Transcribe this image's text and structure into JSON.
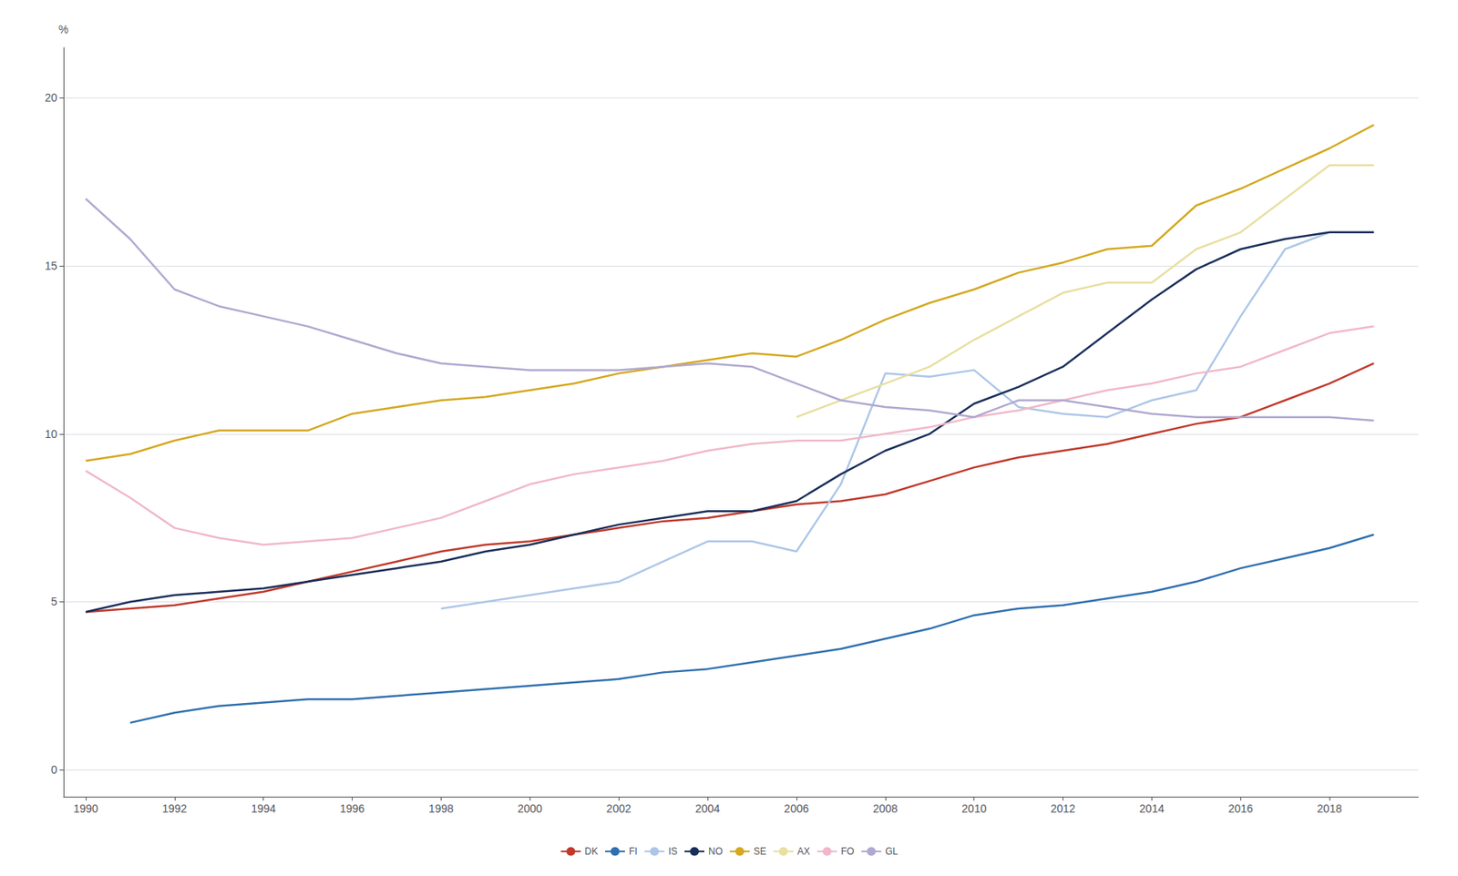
{
  "chart_data": {
    "type": "line",
    "ylabel": "%",
    "x": [
      1990,
      1991,
      1992,
      1993,
      1994,
      1995,
      1996,
      1997,
      1998,
      1999,
      2000,
      2001,
      2002,
      2003,
      2004,
      2005,
      2006,
      2007,
      2008,
      2009,
      2010,
      2011,
      2012,
      2013,
      2014,
      2015,
      2016,
      2017,
      2018,
      2019
    ],
    "series": [
      {
        "name": "DK",
        "color": "#c0392b",
        "values": [
          4.7,
          4.8,
          4.9,
          5.1,
          5.3,
          5.6,
          5.9,
          6.2,
          6.5,
          6.7,
          6.8,
          7.0,
          7.2,
          7.4,
          7.5,
          7.7,
          7.9,
          8.0,
          8.2,
          8.6,
          9.0,
          9.3,
          9.5,
          9.7,
          10.0,
          10.3,
          10.5,
          11.0,
          11.5,
          12.1
        ]
      },
      {
        "name": "FI",
        "color": "#3070b0",
        "values": [
          null,
          1.4,
          1.7,
          1.9,
          2.0,
          2.1,
          2.1,
          2.2,
          2.3,
          2.4,
          2.5,
          2.6,
          2.7,
          2.9,
          3.0,
          3.2,
          3.4,
          3.6,
          3.9,
          4.2,
          4.6,
          4.8,
          4.9,
          5.1,
          5.3,
          5.6,
          6.0,
          6.3,
          6.6,
          7.0
        ]
      },
      {
        "name": "IS",
        "color": "#adc6e8",
        "values": [
          null,
          null,
          null,
          null,
          null,
          null,
          null,
          null,
          4.8,
          5.0,
          5.2,
          5.4,
          5.6,
          6.2,
          6.8,
          6.8,
          6.5,
          8.5,
          11.8,
          11.7,
          11.9,
          10.8,
          10.6,
          10.5,
          11.0,
          11.3,
          13.5,
          15.5,
          16.0,
          16.0
        ]
      },
      {
        "name": "NO",
        "color": "#1a2e5a",
        "values": [
          4.7,
          5.0,
          5.2,
          5.3,
          5.4,
          5.6,
          5.8,
          6.0,
          6.2,
          6.5,
          6.7,
          7.0,
          7.3,
          7.5,
          7.7,
          7.7,
          8.0,
          8.8,
          9.5,
          10.0,
          10.9,
          11.4,
          12.0,
          13.0,
          14.0,
          14.9,
          15.5,
          15.8,
          16.0,
          16.0
        ]
      },
      {
        "name": "SE",
        "color": "#d4a820",
        "values": [
          9.2,
          9.4,
          9.8,
          10.1,
          10.1,
          10.1,
          10.6,
          10.8,
          11.0,
          11.1,
          11.3,
          11.5,
          11.8,
          12.0,
          12.2,
          12.4,
          12.3,
          12.8,
          13.4,
          13.9,
          14.3,
          14.8,
          15.1,
          15.5,
          15.6,
          16.8,
          17.3,
          17.9,
          18.5,
          19.2
        ]
      },
      {
        "name": "AX",
        "color": "#e8dfa0",
        "values": [
          null,
          null,
          null,
          null,
          null,
          null,
          null,
          null,
          null,
          null,
          null,
          null,
          null,
          null,
          null,
          null,
          10.5,
          11.0,
          11.5,
          12.0,
          12.8,
          13.5,
          14.2,
          14.5,
          14.5,
          15.5,
          16.0,
          17.0,
          18.0,
          18.0
        ]
      },
      {
        "name": "FO",
        "color": "#f0b8c8",
        "values": [
          8.9,
          8.1,
          7.2,
          6.9,
          6.7,
          6.8,
          6.9,
          7.2,
          7.5,
          8.0,
          8.5,
          8.8,
          9.0,
          9.2,
          9.5,
          9.7,
          9.8,
          9.8,
          10.0,
          10.2,
          10.5,
          10.7,
          11.0,
          11.3,
          11.5,
          11.8,
          12.0,
          12.5,
          13.0,
          13.2
        ]
      },
      {
        "name": "GL",
        "color": "#b0a8d0",
        "values": [
          17.0,
          15.8,
          14.3,
          13.8,
          13.5,
          13.2,
          12.8,
          12.4,
          12.1,
          12.0,
          11.9,
          11.9,
          11.9,
          12.0,
          12.1,
          12.0,
          11.5,
          11.0,
          10.8,
          10.7,
          10.5,
          11.0,
          11.0,
          10.8,
          10.6,
          10.5,
          10.5,
          10.5,
          10.5,
          10.4
        ]
      }
    ],
    "xlim": [
      1989.5,
      2020.0
    ],
    "ylim": [
      -0.8,
      21.5
    ],
    "xticks": [
      1990,
      1992,
      1994,
      1996,
      1998,
      2000,
      2002,
      2004,
      2006,
      2008,
      2010,
      2012,
      2014,
      2016,
      2018
    ],
    "yticks": [
      0,
      5,
      10,
      15,
      20
    ],
    "grid": true,
    "legend": "bottom"
  }
}
